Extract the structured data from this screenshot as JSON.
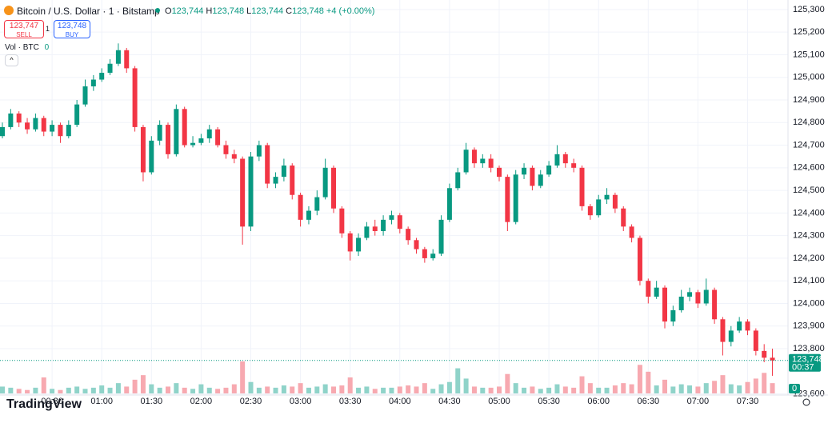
{
  "chart_data": {
    "type": "candlestick",
    "title": "Bitcoin / U.S. Dollar · 1 · Bitstamp",
    "x": [
      "00:00",
      "00:05",
      "00:10",
      "00:15",
      "00:20",
      "00:25",
      "00:30",
      "00:35",
      "00:40",
      "00:45",
      "00:50",
      "00:55",
      "01:00",
      "01:05",
      "01:10",
      "01:15",
      "01:20",
      "01:25",
      "01:30",
      "01:35",
      "01:40",
      "01:45",
      "01:50",
      "01:55",
      "02:00",
      "02:05",
      "02:10",
      "02:15",
      "02:20",
      "02:25",
      "02:30",
      "02:35",
      "02:40",
      "02:45",
      "02:50",
      "02:55",
      "03:00",
      "03:05",
      "03:10",
      "03:15",
      "03:20",
      "03:25",
      "03:30",
      "03:35",
      "03:40",
      "03:45",
      "03:50",
      "03:55",
      "04:00",
      "04:05",
      "04:10",
      "04:15",
      "04:20",
      "04:25",
      "04:30",
      "04:35",
      "04:40",
      "04:45",
      "04:50",
      "04:55",
      "05:00",
      "05:05",
      "05:10",
      "05:15",
      "05:20",
      "05:25",
      "05:30",
      "05:35",
      "05:40",
      "05:45",
      "05:50",
      "05:55",
      "06:00",
      "06:05",
      "06:10",
      "06:15",
      "06:20",
      "06:25",
      "06:30",
      "06:35",
      "06:40",
      "06:45",
      "06:50",
      "06:55",
      "07:00",
      "07:05",
      "07:10",
      "07:15",
      "07:20",
      "07:25",
      "07:30",
      "07:35",
      "07:40",
      "07:45"
    ],
    "open": [
      124740,
      124780,
      124840,
      124800,
      124770,
      124820,
      124760,
      124790,
      124740,
      124790,
      124880,
      124960,
      124990,
      125020,
      125060,
      125120,
      125040,
      124780,
      124580,
      124720,
      124790,
      124660,
      124860,
      124700,
      124710,
      124730,
      124770,
      124700,
      124660,
      124640,
      124340,
      124650,
      124700,
      124530,
      124560,
      124610,
      124480,
      124370,
      124410,
      124470,
      124600,
      124420,
      124310,
      124230,
      124290,
      124340,
      124320,
      124370,
      124390,
      124330,
      124280,
      124240,
      124200,
      124220,
      124370,
      124510,
      124580,
      124680,
      124620,
      124640,
      124600,
      124560,
      124360,
      124570,
      124600,
      124520,
      124570,
      124610,
      124660,
      124620,
      124600,
      124430,
      124390,
      124460,
      124480,
      124420,
      124340,
      124290,
      124100,
      124030,
      124070,
      123920,
      123970,
      124030,
      124050,
      124000,
      124060,
      123930,
      123830,
      123880,
      123920,
      123880,
      123790,
      123760
    ],
    "high": [
      124800,
      124860,
      124850,
      124820,
      124840,
      124830,
      124810,
      124800,
      124810,
      124900,
      124990,
      125010,
      125040,
      125080,
      125150,
      125130,
      125050,
      124790,
      124740,
      124810,
      124800,
      124880,
      124870,
      124740,
      124750,
      124790,
      124780,
      124720,
      124680,
      124650,
      124670,
      124720,
      124710,
      124580,
      124640,
      124620,
      124490,
      124430,
      124500,
      124640,
      124610,
      124430,
      124320,
      124310,
      124360,
      124370,
      124390,
      124410,
      124400,
      124340,
      124290,
      124250,
      124240,
      124390,
      124530,
      124600,
      124710,
      124690,
      124660,
      124660,
      124610,
      124570,
      124590,
      124620,
      124610,
      124590,
      124630,
      124700,
      124670,
      124640,
      124610,
      124440,
      124480,
      124510,
      124490,
      124430,
      124350,
      124300,
      124110,
      124100,
      124080,
      123990,
      124060,
      124070,
      124060,
      124110,
      124070,
      123940,
      123900,
      123940,
      123930,
      123890,
      123820,
      123800
    ],
    "low": [
      124730,
      124770,
      124780,
      124750,
      124760,
      124740,
      124740,
      124710,
      124730,
      124780,
      124870,
      124940,
      124980,
      125010,
      125050,
      125020,
      124760,
      124540,
      124570,
      124700,
      124640,
      124650,
      124690,
      124690,
      124700,
      124710,
      124690,
      124640,
      124620,
      124260,
      124320,
      124630,
      124510,
      124510,
      124540,
      124460,
      124340,
      124350,
      124390,
      124460,
      124400,
      124290,
      124190,
      124210,
      124280,
      124300,
      124300,
      124350,
      124310,
      124260,
      124220,
      124180,
      124190,
      124210,
      124360,
      124500,
      124570,
      124600,
      124600,
      124580,
      124540,
      124320,
      124350,
      124550,
      124500,
      124510,
      124560,
      124600,
      124600,
      124580,
      124410,
      124370,
      124380,
      124440,
      124400,
      124320,
      124270,
      124080,
      124000,
      124020,
      123890,
      123900,
      123960,
      124010,
      123980,
      123990,
      123910,
      123770,
      123810,
      123870,
      123860,
      123770,
      123740,
      123680
    ],
    "close": [
      124780,
      124840,
      124800,
      124770,
      124820,
      124760,
      124790,
      124740,
      124790,
      124880,
      124960,
      124990,
      125020,
      125060,
      125120,
      125040,
      124780,
      124580,
      124720,
      124790,
      124660,
      124860,
      124700,
      124710,
      124730,
      124770,
      124700,
      124660,
      124640,
      124340,
      124650,
      124700,
      124530,
      124560,
      124610,
      124480,
      124370,
      124410,
      124470,
      124600,
      124420,
      124310,
      124230,
      124290,
      124340,
      124320,
      124370,
      124390,
      124330,
      124280,
      124240,
      124200,
      124220,
      124370,
      124510,
      124580,
      124680,
      124620,
      124640,
      124600,
      124560,
      124360,
      124570,
      124600,
      124520,
      124570,
      124610,
      124660,
      124620,
      124600,
      124430,
      124390,
      124460,
      124480,
      124420,
      124340,
      124290,
      124100,
      124030,
      124070,
      123920,
      123970,
      124030,
      124050,
      124000,
      124060,
      123930,
      123830,
      123880,
      123920,
      123880,
      123790,
      123760,
      123748
    ],
    "volume": [
      0.6,
      0.5,
      0.4,
      0.3,
      0.5,
      1.4,
      0.4,
      0.3,
      0.5,
      0.6,
      0.4,
      0.5,
      0.7,
      0.5,
      0.9,
      0.6,
      1.2,
      1.6,
      0.8,
      0.5,
      0.6,
      0.9,
      0.5,
      0.4,
      0.8,
      0.5,
      0.4,
      0.5,
      0.8,
      2.8,
      1.0,
      0.5,
      0.6,
      0.5,
      0.7,
      0.6,
      0.9,
      0.5,
      0.6,
      0.8,
      0.6,
      0.7,
      1.4,
      0.5,
      0.6,
      0.4,
      0.5,
      0.5,
      0.6,
      0.7,
      0.6,
      0.9,
      0.4,
      0.8,
      1.0,
      2.2,
      1.3,
      0.6,
      0.5,
      0.5,
      0.6,
      1.7,
      0.9,
      0.5,
      0.6,
      0.4,
      0.5,
      0.8,
      0.6,
      0.5,
      1.5,
      0.9,
      0.5,
      0.5,
      0.7,
      0.9,
      0.8,
      2.5,
      1.9,
      0.7,
      1.2,
      0.6,
      0.8,
      0.7,
      0.6,
      0.9,
      1.1,
      1.6,
      0.8,
      0.7,
      1.0,
      1.3,
      1.8,
      0.9
    ],
    "up_color": "#089981",
    "down_color": "#f23645",
    "volume_up_color": "#8fd3c9",
    "volume_down_color": "#f7a9b0",
    "ylim": [
      123595,
      125342
    ],
    "yticks": [
      {
        "value": 125300,
        "label": "125,300"
      },
      {
        "value": 125200,
        "label": "125,200"
      },
      {
        "value": 125100,
        "label": "125,100"
      },
      {
        "value": 125000,
        "label": "125,000"
      },
      {
        "value": 124900,
        "label": "124,900"
      },
      {
        "value": 124800,
        "label": "124,800"
      },
      {
        "value": 124700,
        "label": "124,700"
      },
      {
        "value": 124600,
        "label": "124,600"
      },
      {
        "value": 124500,
        "label": "124,500"
      },
      {
        "value": 124400,
        "label": "124,400"
      },
      {
        "value": 124300,
        "label": "124,300"
      },
      {
        "value": 124200,
        "label": "124,200"
      },
      {
        "value": 124100,
        "label": "124,100"
      },
      {
        "value": 124000,
        "label": "124,000"
      },
      {
        "value": 123900,
        "label": "123,900"
      },
      {
        "value": 123800,
        "label": "123,800"
      },
      {
        "value": 123600,
        "label": "123,600"
      }
    ],
    "xticks": [
      "00:30",
      "01:00",
      "01:30",
      "02:00",
      "02:30",
      "03:00",
      "03:30",
      "04:00",
      "04:30",
      "05:00",
      "05:30",
      "06:00",
      "06:30",
      "07:00",
      "07:30"
    ],
    "grid": true,
    "last_price": {
      "value": 123748,
      "label": "123,748",
      "countdown": "00:37"
    }
  },
  "header": {
    "o_label": "O",
    "o": "123,744",
    "h_label": "H",
    "h": "123,748",
    "l_label": "L",
    "l": "123,744",
    "c_label": "C",
    "c": "123,748",
    "change": "+4 (+0.00%)",
    "sell_price": "123,747",
    "sell": "SELL",
    "quantity": "1",
    "buy_price": "123,748",
    "buy": "BUY",
    "volume_label": "Vol · BTC",
    "volume_value": "0",
    "volume_axis_label": "0",
    "logo": "TradingView"
  }
}
